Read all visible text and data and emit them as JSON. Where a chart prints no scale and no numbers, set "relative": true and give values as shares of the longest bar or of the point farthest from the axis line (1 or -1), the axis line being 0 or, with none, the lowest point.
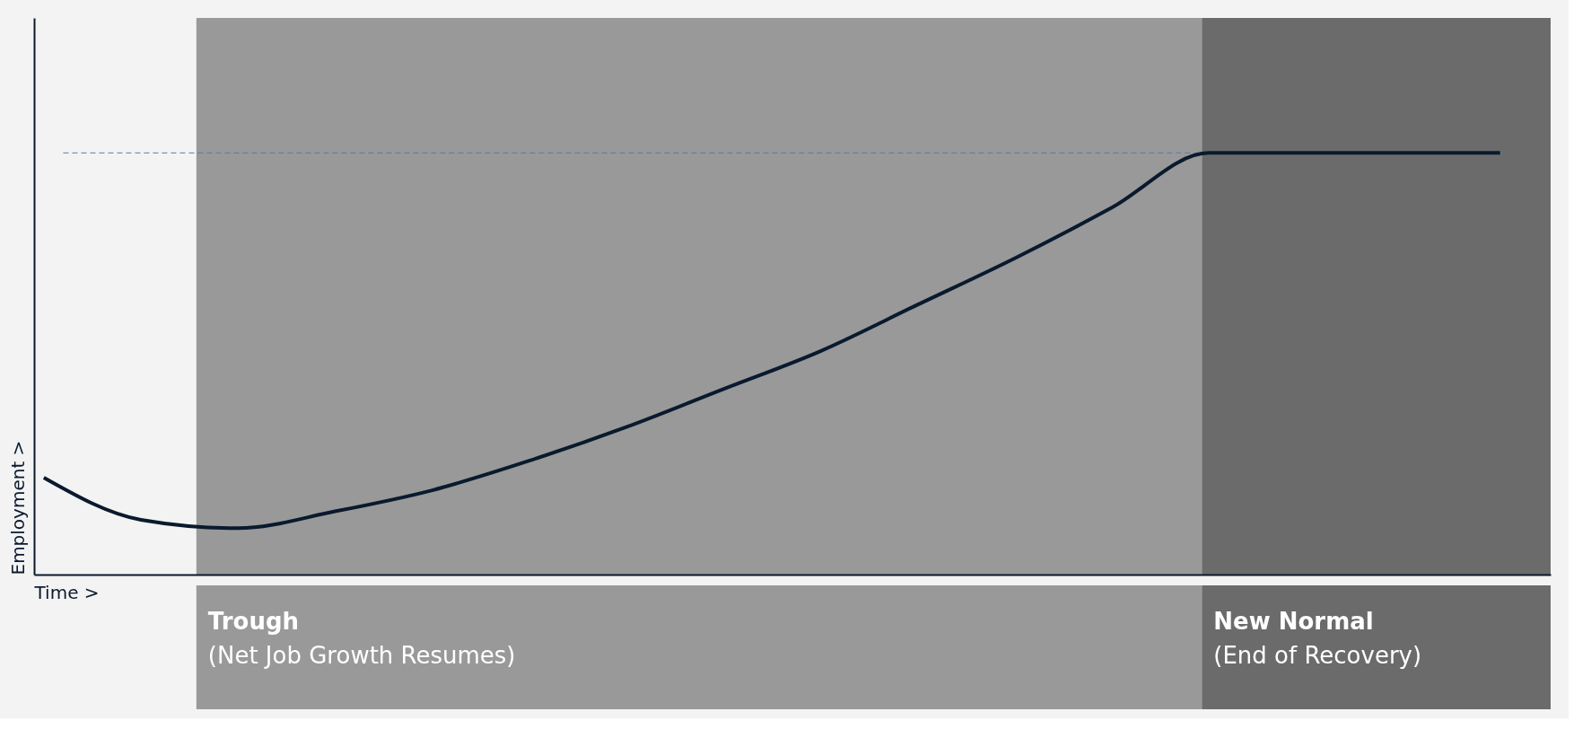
{
  "chart_data": {
    "type": "line",
    "relative": true,
    "xlabel": "Time >",
    "ylabel": "Employment >",
    "categories": [
      null,
      null,
      null,
      null,
      null,
      null,
      null,
      null,
      null,
      null,
      null,
      null,
      null,
      null,
      null,
      null
    ],
    "series": [
      {
        "color": "#0a1a2e",
        "values": [
          0.23,
          0.13,
          0.11,
          0.15,
          0.2,
          0.27,
          0.35,
          0.44,
          0.53,
          0.64,
          0.75,
          0.87,
          1,
          1,
          1,
          1
        ]
      }
    ],
    "ref_lines": [
      {
        "axis": "y",
        "value": 1,
        "color": "#4a7fb5",
        "line_style": "dashed"
      }
    ],
    "annotations": [
      "Trough",
      "(Net Job Growth Resumes)",
      "New Normal",
      "(End of Recovery)"
    ],
    "grid": false,
    "tick_labels": false,
    "line_style": "solid",
    "marker": "none"
  }
}
